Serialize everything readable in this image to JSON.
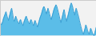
{
  "chart_data": {
    "type": "area",
    "values": [
      0.4,
      0.3333,
      0.36,
      0.44,
      0.5333,
      0.6,
      0.6667,
      0.7333,
      0.6267,
      0.5333,
      0.4667,
      0.5733,
      0.6667,
      0.76,
      0.84,
      0.7067,
      0.5333,
      0.44,
      0.4933,
      0.6,
      0.5333,
      0.4667,
      0.4,
      0.36,
      0.44,
      0.4933,
      0.44,
      0.36,
      0.3067,
      0.4,
      0.4667,
      0.5333,
      0.6,
      0.5333,
      0.4667,
      0.4,
      0.36,
      0.44,
      0.4933,
      0.44,
      0.36,
      0.3067,
      0.4,
      0.4667,
      0.4,
      0.3333,
      0.2667,
      0.36,
      0.44,
      0.5333,
      0.6,
      0.6667,
      0.76,
      0.84,
      0.8933,
      0.84,
      0.76,
      0.6667,
      0.7333,
      0.84,
      0.76,
      0.6667,
      0.5733,
      0.4933,
      0.5733,
      0.6667,
      0.76,
      0.84,
      0.8933,
      0.9467,
      0.8933,
      0.8,
      0.7067,
      0.6,
      0.4933,
      0.4,
      0.4933,
      0.6,
      0.7067,
      0.8,
      0.6667,
      0.5333,
      0.44,
      0.5333,
      0.6267,
      0.7333,
      0.84,
      0.9333,
      1,
      0.9333,
      0.84,
      0.7333,
      0.6267,
      0.7333,
      0.84,
      0.76,
      0.6667,
      0.5733,
      0.4667,
      0.36,
      0.2667,
      0.1733,
      0.0933,
      0.04,
      0.1333,
      0.2267,
      0.3333,
      0.2667,
      0.1733,
      0.0933,
      0.04,
      0.1333,
      0.2267,
      0.1733,
      0.0933,
      0.04,
      0,
      0.0667,
      0.1733,
      0.2667
    ],
    "colors": [
      "#5bbde8",
      "#3a9fd4"
    ],
    "xlim": [
      0,
      119
    ],
    "ylim": [
      -0.02,
      1.08
    ],
    "tick_labels": false,
    "grid": false
  }
}
